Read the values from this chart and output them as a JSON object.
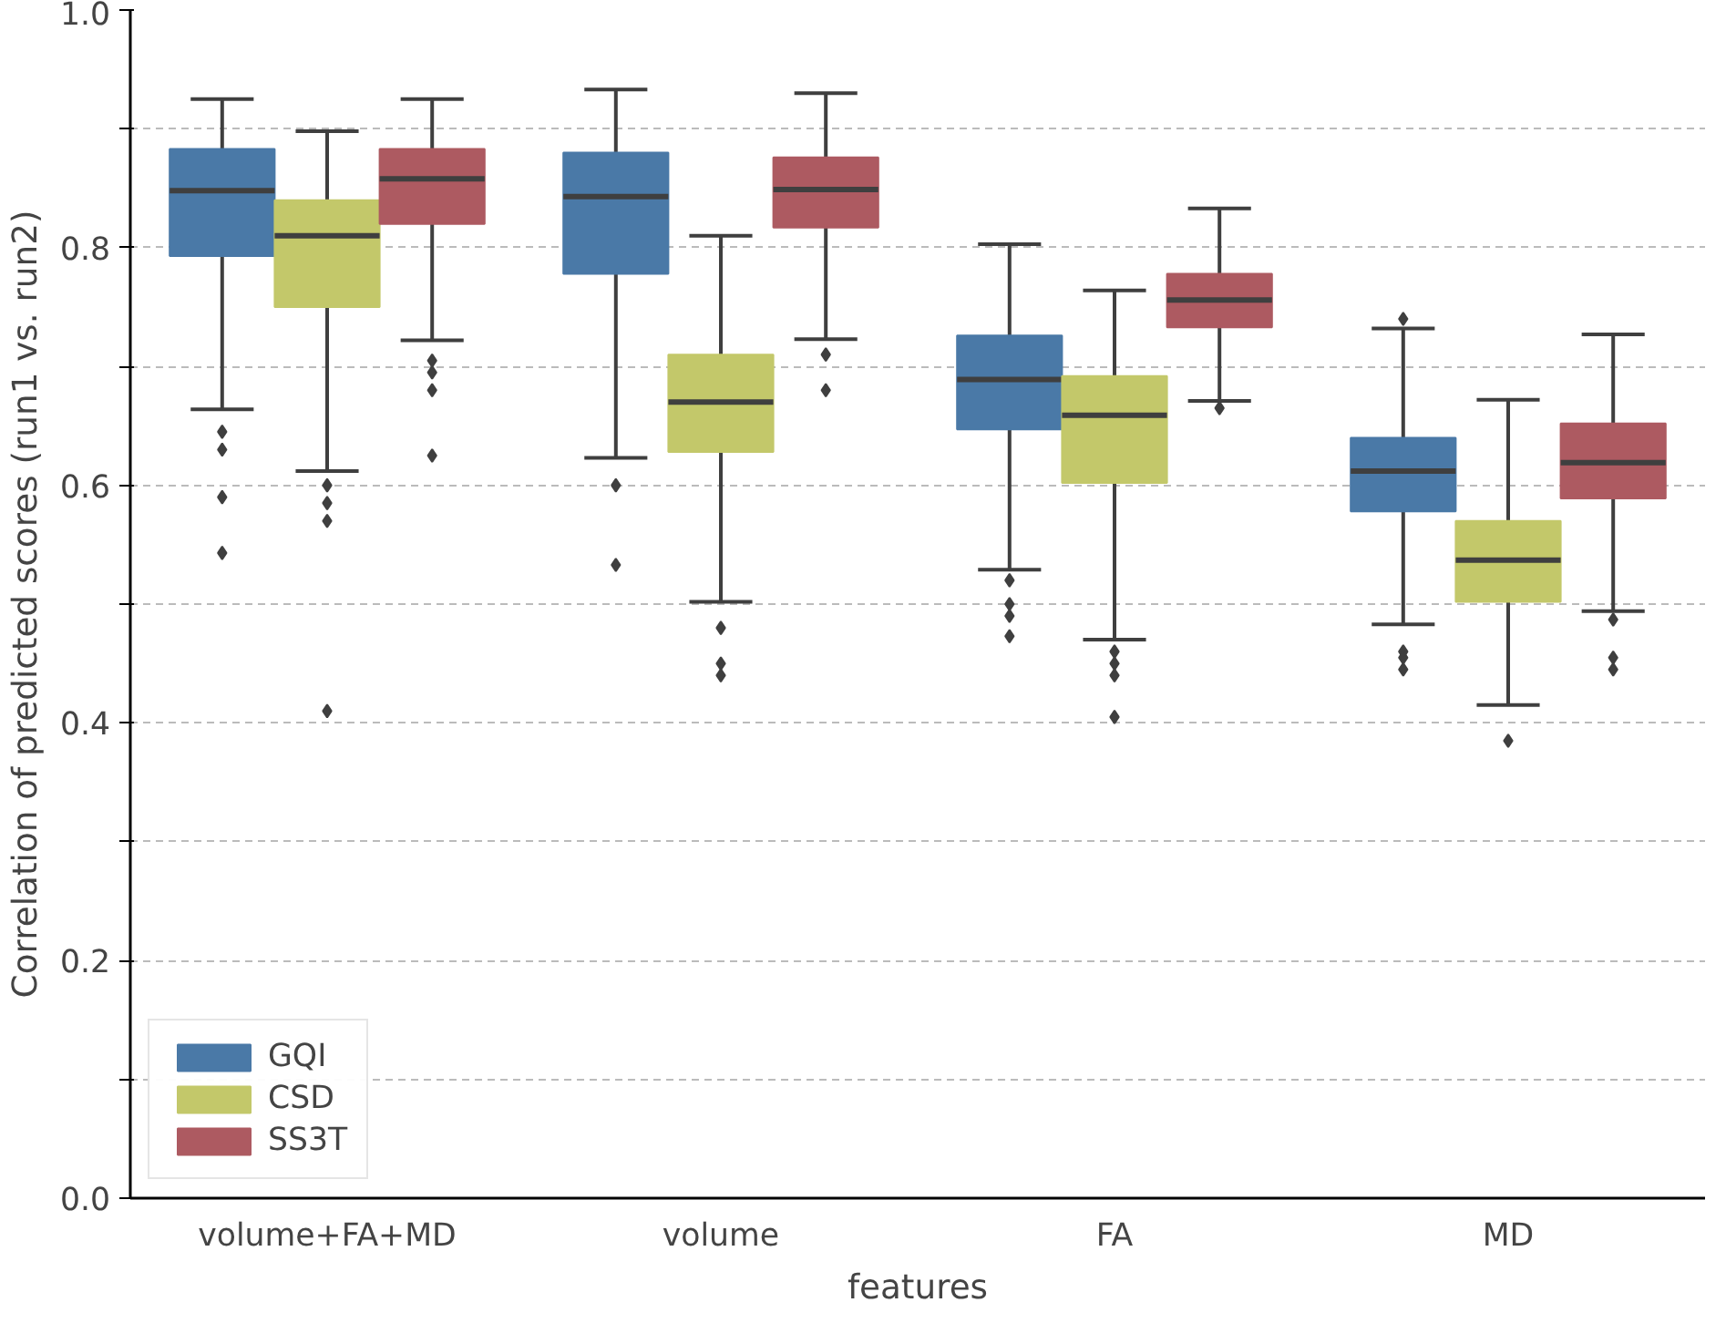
{
  "chart_data": {
    "type": "box",
    "xlabel": "features",
    "ylabel": "Correlation of predicted scores (run1 vs. run2)",
    "categories": [
      "volume+FA+MD",
      "volume",
      "FA",
      "MD"
    ],
    "ylim": [
      0,
      1.0
    ],
    "yticks": [
      {
        "value": 0.0,
        "label": "0.0"
      },
      {
        "value": 0.1,
        "label": null
      },
      {
        "value": 0.2,
        "label": "0.2"
      },
      {
        "value": 0.3,
        "label": null
      },
      {
        "value": 0.4,
        "label": "0.4"
      },
      {
        "value": 0.5,
        "label": null
      },
      {
        "value": 0.6,
        "label": "0.6"
      },
      {
        "value": 0.7,
        "label": null
      },
      {
        "value": 0.8,
        "label": "0.8"
      },
      {
        "value": 0.9,
        "label": null
      },
      {
        "value": 1.0,
        "label": "1.0"
      }
    ],
    "grid": "y",
    "legend": "bottom left",
    "series": [
      {
        "name": "GQI",
        "color": "#4a79a7",
        "boxes": [
          {
            "low": 0.664,
            "q1": 0.793,
            "median": 0.848,
            "q3": 0.883,
            "high": 0.925,
            "outliers": [
              0.645,
              0.63,
              0.59,
              0.543
            ]
          },
          {
            "low": 0.623,
            "q1": 0.778,
            "median": 0.843,
            "q3": 0.88,
            "high": 0.933,
            "outliers": [
              0.6,
              0.533
            ]
          },
          {
            "low": 0.529,
            "q1": 0.647,
            "median": 0.689,
            "q3": 0.726,
            "high": 0.803,
            "outliers": [
              0.52,
              0.5,
              0.49,
              0.473
            ]
          },
          {
            "low": 0.483,
            "q1": 0.578,
            "median": 0.612,
            "q3": 0.64,
            "high": 0.732,
            "outliers": [
              0.74,
              0.46,
              0.455,
              0.445
            ]
          }
        ]
      },
      {
        "name": "CSD",
        "color": "#c3c86a",
        "boxes": [
          {
            "low": 0.612,
            "q1": 0.75,
            "median": 0.81,
            "q3": 0.84,
            "high": 0.898,
            "outliers": [
              0.6,
              0.585,
              0.57,
              0.41
            ]
          },
          {
            "low": 0.502,
            "q1": 0.628,
            "median": 0.67,
            "q3": 0.71,
            "high": 0.81,
            "outliers": [
              0.48,
              0.45,
              0.44
            ]
          },
          {
            "low": 0.47,
            "q1": 0.602,
            "median": 0.659,
            "q3": 0.692,
            "high": 0.764,
            "outliers": [
              0.46,
              0.45,
              0.44,
              0.405
            ]
          },
          {
            "low": 0.415,
            "q1": 0.502,
            "median": 0.537,
            "q3": 0.57,
            "high": 0.672,
            "outliers": [
              0.385
            ]
          }
        ]
      },
      {
        "name": "SS3T",
        "color": "#ad5a61",
        "boxes": [
          {
            "low": 0.722,
            "q1": 0.82,
            "median": 0.858,
            "q3": 0.883,
            "high": 0.925,
            "outliers": [
              0.705,
              0.695,
              0.68,
              0.625
            ]
          },
          {
            "low": 0.723,
            "q1": 0.817,
            "median": 0.849,
            "q3": 0.876,
            "high": 0.93,
            "outliers": [
              0.71,
              0.68
            ]
          },
          {
            "low": 0.671,
            "q1": 0.733,
            "median": 0.756,
            "q3": 0.778,
            "high": 0.833,
            "outliers": [
              0.665
            ]
          },
          {
            "low": 0.494,
            "q1": 0.589,
            "median": 0.619,
            "q3": 0.652,
            "high": 0.727,
            "outliers": [
              0.487,
              0.455,
              0.445
            ]
          }
        ]
      }
    ]
  }
}
